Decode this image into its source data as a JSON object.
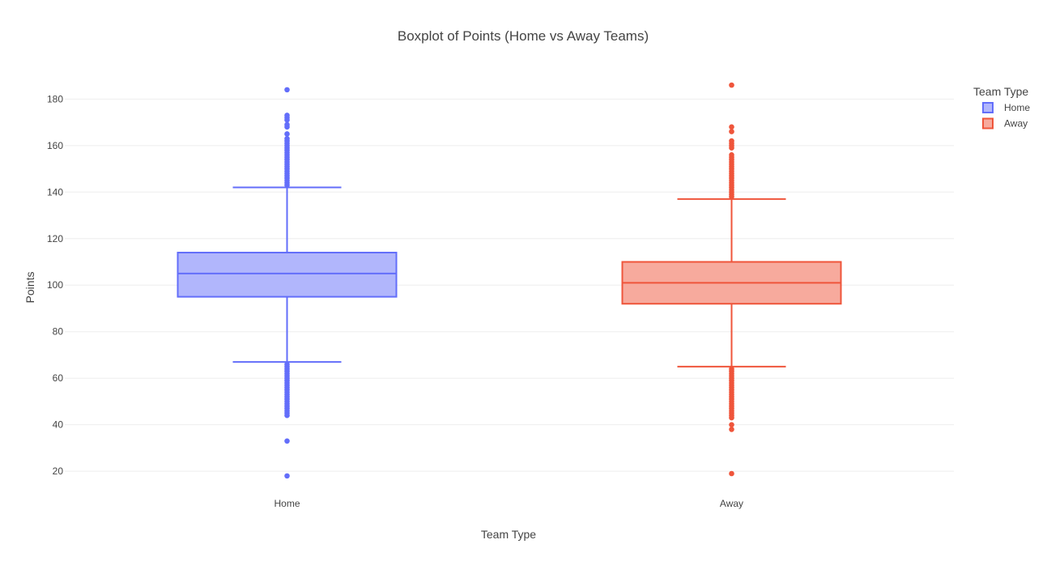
{
  "chart_data": {
    "type": "box",
    "title": "Boxplot of Points (Home vs Away Teams)",
    "xlabel": "Team Type",
    "ylabel": "Points",
    "categories": [
      "Home",
      "Away"
    ],
    "ylim": [
      11,
      193
    ],
    "yticks": [
      20,
      40,
      60,
      80,
      100,
      120,
      140,
      160,
      180
    ],
    "grid": true,
    "legend": {
      "title": "Team Type",
      "placement": "top-right",
      "entries": [
        "Home",
        "Away"
      ]
    },
    "series": [
      {
        "name": "Home",
        "color": "#636efa",
        "fill": "#b1b6fc",
        "lower_fence": 67,
        "q1": 95,
        "median": 105,
        "q3": 114,
        "upper_fence": 142,
        "outliers": [
          184,
          173,
          172,
          171,
          169,
          168,
          165,
          163,
          162,
          161,
          160,
          159,
          158,
          157,
          156,
          155,
          154,
          153,
          152,
          151,
          150,
          149,
          148,
          147,
          146,
          145,
          144,
          143,
          66,
          65,
          64,
          63,
          62,
          61,
          60,
          59,
          58,
          57,
          56,
          55,
          54,
          53,
          52,
          51,
          50,
          49,
          48,
          47,
          46,
          45,
          44,
          33,
          18
        ]
      },
      {
        "name": "Away",
        "color": "#ef553b",
        "fill": "#f7aa9d",
        "lower_fence": 65,
        "q1": 92,
        "median": 101,
        "q3": 110,
        "upper_fence": 137,
        "outliers": [
          186,
          168,
          166,
          162,
          161,
          160,
          159,
          156,
          155,
          154,
          153,
          152,
          151,
          150,
          149,
          148,
          147,
          146,
          145,
          144,
          143,
          142,
          141,
          140,
          139,
          138,
          64,
          63,
          62,
          61,
          60,
          59,
          58,
          57,
          56,
          55,
          54,
          53,
          52,
          51,
          50,
          49,
          48,
          47,
          46,
          45,
          44,
          43,
          40,
          38,
          19
        ]
      }
    ]
  }
}
